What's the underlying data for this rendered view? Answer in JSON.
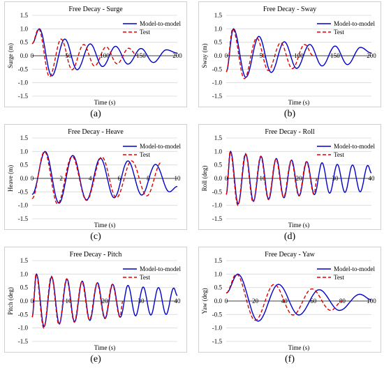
{
  "colors": {
    "model": "#0000cc",
    "test": "#dd0000",
    "grid": "#d9d9d9",
    "axis": "#404040",
    "text": "#000000"
  },
  "chart_data": [
    {
      "type": "line",
      "panel_label": "(a)",
      "title": "Free Decay  - Surge",
      "xlabel": "Time (s)",
      "ylabel": "Surge (m)",
      "xlim": [
        0,
        200
      ],
      "ylim": [
        -1.5,
        1.5
      ],
      "xticks": [
        0,
        50,
        100,
        150,
        200
      ],
      "yticks": [
        1.5,
        1.0,
        0.5,
        0.0,
        -0.5,
        -1.0,
        -1.5
      ],
      "xtick_labels": [
        "0",
        "50",
        "100",
        "150",
        "200"
      ],
      "ytick_labels": [
        "1.5",
        "1.0",
        "0.5",
        "0.0",
        "-0.5",
        "-1.0",
        "-1.5"
      ],
      "legend": "top-right",
      "series": [
        {
          "name": "Model-to-model",
          "style": "solid",
          "color": "#0000cc",
          "x": [
            0,
            10,
            27,
            45,
            62,
            80,
            97,
            115,
            132,
            150,
            167,
            185,
            200
          ],
          "y": [
            0.45,
            1.0,
            -0.75,
            0.62,
            -0.52,
            0.44,
            -0.4,
            0.35,
            -0.31,
            0.27,
            -0.25,
            0.22,
            0.1
          ]
        },
        {
          "name": "Test",
          "style": "dashed",
          "color": "#dd0000",
          "x": [
            0,
            9,
            24,
            40,
            55,
            71,
            86,
            102,
            117,
            133,
            145
          ],
          "y": [
            0.45,
            1.0,
            -0.78,
            0.62,
            -0.52,
            0.42,
            -0.38,
            0.33,
            -0.3,
            0.28,
            0.0
          ]
        }
      ]
    },
    {
      "type": "line",
      "panel_label": "(b)",
      "title": "Free Decay  - Sway",
      "xlabel": "Time (s)",
      "ylabel": "Sway (m)",
      "xlim": [
        0,
        200
      ],
      "ylim": [
        -1.5,
        1.5
      ],
      "xticks": [
        0,
        50,
        100,
        150,
        200
      ],
      "yticks": [
        1.5,
        1.0,
        0.5,
        0.0,
        -0.5,
        -1.0,
        -1.5
      ],
      "xtick_labels": [
        "0",
        "50",
        "100",
        "150",
        "200"
      ],
      "ytick_labels": [
        "1.5",
        "1.0",
        "0.5",
        "0.0",
        "-0.5",
        "-1.0",
        "-1.5"
      ],
      "legend": "top-right",
      "series": [
        {
          "name": "Model-to-model",
          "style": "solid",
          "color": "#0000cc",
          "x": [
            0,
            10,
            27,
            45,
            62,
            80,
            97,
            115,
            132,
            150,
            167,
            185,
            200
          ],
          "y": [
            -0.6,
            1.0,
            -0.8,
            0.72,
            -0.62,
            0.52,
            -0.47,
            0.42,
            -0.38,
            0.36,
            -0.33,
            0.31,
            0.1
          ]
        },
        {
          "name": "Test",
          "style": "dashed",
          "color": "#dd0000",
          "x": [
            0,
            9,
            25,
            42,
            58,
            75,
            91,
            108,
            120
          ],
          "y": [
            -0.6,
            1.0,
            -0.85,
            0.66,
            -0.55,
            0.48,
            -0.48,
            0.42,
            0.0
          ]
        }
      ]
    },
    {
      "type": "line",
      "panel_label": "(c)",
      "title": "Free Decay  - Heave",
      "xlabel": "Time (s)",
      "ylabel": "Heave (m)",
      "xlim": [
        0,
        10
      ],
      "ylim": [
        -1.5,
        1.5
      ],
      "xticks": [
        0,
        2,
        4,
        6,
        8,
        10
      ],
      "yticks": [
        1.5,
        1.0,
        0.5,
        0.0,
        -0.5,
        -1.0,
        -1.5
      ],
      "xtick_labels": [
        "0",
        "2",
        "4",
        "6",
        "8",
        "10"
      ],
      "ytick_labels": [
        "1.5",
        "1.0",
        "0.5",
        "0.0",
        "-0.5",
        "-1.0",
        "-1.5"
      ],
      "legend": "top-right",
      "series": [
        {
          "name": "Model-to-model",
          "style": "solid",
          "color": "#0000cc",
          "x": [
            0,
            0.9,
            1.85,
            2.8,
            3.75,
            4.7,
            5.65,
            6.6,
            7.55,
            8.5,
            9.45,
            10
          ],
          "y": [
            -0.6,
            1.0,
            -0.92,
            0.85,
            -0.8,
            0.75,
            -0.72,
            0.65,
            -0.62,
            0.52,
            -0.5,
            -0.3
          ]
        },
        {
          "name": "Test",
          "style": "dashed",
          "color": "#dd0000",
          "x": [
            0,
            0.85,
            1.75,
            2.75,
            3.75,
            4.8,
            5.8,
            6.85,
            7.9,
            8.9
          ],
          "y": [
            -0.75,
            1.0,
            -0.95,
            0.82,
            -0.82,
            0.8,
            -0.72,
            0.65,
            -0.65,
            0.6
          ]
        }
      ]
    },
    {
      "type": "line",
      "panel_label": "(d)",
      "title": "Free Decay  - Roll",
      "xlabel": "Time (s)",
      "ylabel": "Roll (deg)",
      "xlim": [
        0,
        40
      ],
      "ylim": [
        -1.5,
        1.5
      ],
      "xticks": [
        0,
        10,
        20,
        30,
        40
      ],
      "yticks": [
        1.5,
        1.0,
        0.5,
        0.0,
        -0.5,
        -1.0,
        -1.5
      ],
      "xtick_labels": [
        "0",
        "10",
        "20",
        "30",
        "40"
      ],
      "ytick_labels": [
        "1.5",
        "1.0",
        "0.5",
        "0.0",
        "-0.5",
        "-1.0",
        "-1.5"
      ],
      "legend": "top-right",
      "series": [
        {
          "name": "Model-to-model",
          "style": "solid",
          "color": "#0000cc",
          "x": [
            0,
            1.2,
            3.3,
            5.4,
            7.5,
            9.6,
            11.7,
            13.8,
            15.9,
            18,
            20.1,
            22.2,
            24.3,
            26.4,
            28.5,
            30.6,
            32.7,
            34.8,
            36.9,
            39,
            40
          ],
          "y": [
            -0.6,
            1.0,
            -0.95,
            0.9,
            -0.85,
            0.82,
            -0.78,
            0.74,
            -0.72,
            0.68,
            -0.65,
            0.62,
            -0.6,
            0.58,
            -0.55,
            0.52,
            -0.52,
            0.5,
            -0.5,
            0.48,
            0.2
          ]
        },
        {
          "name": "Test",
          "style": "dashed",
          "color": "#dd0000",
          "x": [
            0,
            1.1,
            3.2,
            5.3,
            7.4,
            9.5,
            11.6,
            13.7,
            15.8,
            17.9,
            20.0,
            22.1,
            24.2,
            25.0
          ],
          "y": [
            -0.6,
            1.0,
            -1.0,
            0.92,
            -0.88,
            0.82,
            -0.78,
            0.72,
            -0.7,
            0.66,
            -0.65,
            0.62,
            -0.6,
            0.0
          ]
        }
      ]
    },
    {
      "type": "line",
      "panel_label": "(e)",
      "title": "Free Decay  - Pitch",
      "xlabel": "Time (s)",
      "ylabel": "Pitch (deg)",
      "xlim": [
        0,
        40
      ],
      "ylim": [
        -1.5,
        1.5
      ],
      "xticks": [
        0,
        10,
        20,
        30,
        40
      ],
      "yticks": [
        1.5,
        1.0,
        0.5,
        0.0,
        -0.5,
        -1.0,
        -1.5
      ],
      "xtick_labels": [
        "0",
        "10",
        "20",
        "30",
        "40"
      ],
      "ytick_labels": [
        "1.5",
        "1.0",
        "0.5",
        "0.0",
        "-0.5",
        "-1.0",
        "-1.5"
      ],
      "legend": "top-right",
      "series": [
        {
          "name": "Model-to-model",
          "style": "solid",
          "color": "#0000cc",
          "x": [
            0,
            1.2,
            3.3,
            5.4,
            7.5,
            9.6,
            11.7,
            13.8,
            15.9,
            18,
            20.1,
            22.2,
            24.3,
            26.4,
            28.5,
            30.6,
            32.7,
            34.8,
            36.9,
            39,
            40
          ],
          "y": [
            -0.6,
            1.0,
            -0.95,
            0.9,
            -0.85,
            0.82,
            -0.78,
            0.74,
            -0.72,
            0.68,
            -0.65,
            0.62,
            -0.6,
            0.58,
            -0.55,
            0.52,
            -0.52,
            0.5,
            -0.5,
            0.48,
            0.2
          ]
        },
        {
          "name": "Test",
          "style": "dashed",
          "color": "#dd0000",
          "x": [
            0,
            1.1,
            3.2,
            5.3,
            7.4,
            9.5,
            11.6,
            13.7,
            15.8,
            17.9,
            20.0,
            22.1,
            24.2,
            25.0
          ],
          "y": [
            -0.6,
            1.0,
            -1.0,
            0.92,
            -0.88,
            0.82,
            -0.78,
            0.72,
            -0.7,
            0.66,
            -0.65,
            0.62,
            -0.6,
            0.0
          ]
        }
      ]
    },
    {
      "type": "line",
      "panel_label": "(f)",
      "title": "Free Decay  - Yaw",
      "xlabel": "Time (s)",
      "ylabel": "Yaw (deg)",
      "xlim": [
        0,
        100
      ],
      "ylim": [
        -1.5,
        1.5
      ],
      "xticks": [
        0,
        20,
        40,
        60,
        80,
        100
      ],
      "yticks": [
        1.5,
        1.0,
        0.5,
        0.0,
        -0.5,
        -1.0,
        -1.5
      ],
      "xtick_labels": [
        "0",
        "20",
        "40",
        "60",
        "80",
        "100"
      ],
      "ytick_labels": [
        "1.5",
        "1.0",
        "0.5",
        "0.0",
        "-0.5",
        "-1.0",
        "-1.5"
      ],
      "legend": "top-right",
      "series": [
        {
          "name": "Model-to-model",
          "style": "solid",
          "color": "#0000cc",
          "x": [
            0,
            8,
            22,
            36,
            50,
            64,
            78,
            92,
            100
          ],
          "y": [
            0.3,
            1.0,
            -0.75,
            0.62,
            -0.52,
            0.42,
            -0.35,
            0.25,
            0.05
          ]
        },
        {
          "name": "Test",
          "style": "dashed",
          "color": "#dd0000",
          "x": [
            0,
            7,
            20,
            33,
            46,
            59,
            72,
            80
          ],
          "y": [
            0.3,
            1.0,
            -0.72,
            0.62,
            -0.52,
            0.45,
            -0.35,
            0.0
          ]
        }
      ]
    }
  ]
}
